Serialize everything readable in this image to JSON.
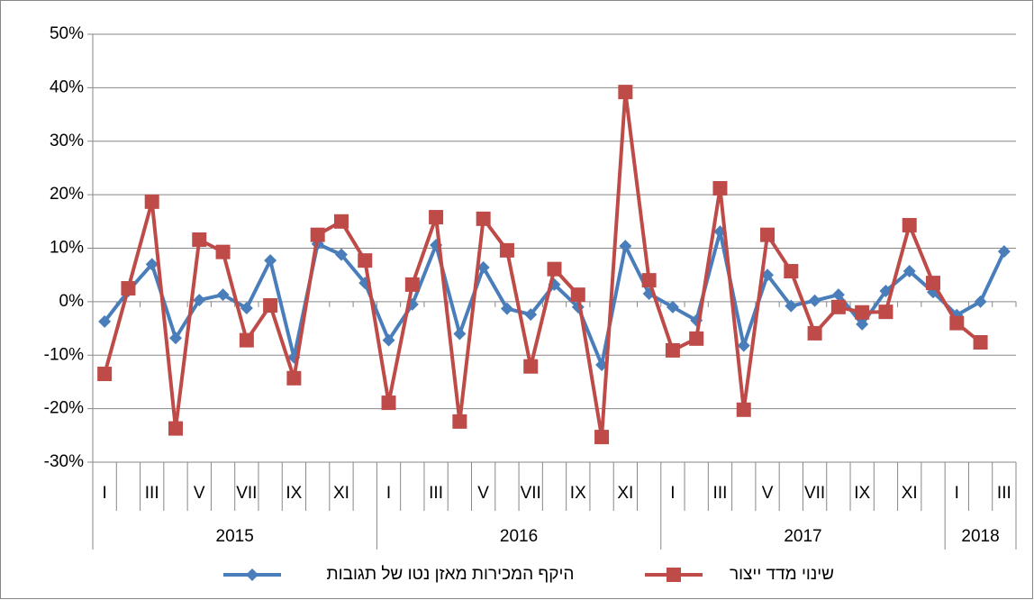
{
  "chart_data": {
    "type": "line",
    "categories": [
      "I",
      null,
      "III",
      null,
      "V",
      null,
      "VII",
      null,
      "IX",
      null,
      "XI",
      null,
      "I",
      null,
      "III",
      null,
      "V",
      null,
      "VII",
      null,
      "IX",
      null,
      "XI",
      null,
      "I",
      null,
      "III",
      null,
      "V",
      null,
      "VII",
      null,
      "IX",
      null,
      "XI",
      null,
      "I",
      null,
      "III"
    ],
    "years": [
      "2015",
      "2016",
      "2017",
      "2018"
    ],
    "series": [
      {
        "name": "היקף המכירות מאזן נטו של תגובות",
        "color": "#4a7ebb",
        "marker": "diamond",
        "values": [
          -3.7,
          2,
          7,
          -6.8,
          0.3,
          1.3,
          -1.2,
          7.7,
          -10.4,
          10.8,
          8.8,
          3.5,
          -7.2,
          -0.5,
          10.6,
          -6,
          6.4,
          -1.3,
          -2.4,
          3.2,
          -1,
          -11.8,
          10.4,
          1.5,
          -1,
          -3.5,
          13.1,
          -8.2,
          5,
          -0.8,
          0.2,
          1.3,
          -4.2,
          2,
          5.7,
          1.8,
          -2.5,
          0,
          9.4
        ]
      },
      {
        "name": "שינוי מדד ייצור",
        "color": "#be4b48",
        "marker": "square",
        "values": [
          -13.5,
          2.5,
          18.7,
          -23.7,
          11.6,
          9.3,
          -7.2,
          -0.7,
          -14.3,
          12.5,
          15,
          7.7,
          -18.9,
          3.2,
          15.8,
          -22.4,
          15.5,
          9.6,
          -12.1,
          6.1,
          1.3,
          -25.3,
          39.2,
          4,
          -9.1,
          -6.9,
          21.2,
          -20.2,
          12.5,
          5.7,
          -5.9,
          -1,
          -2,
          -1.9,
          14.3,
          3.5,
          -4,
          -7.6,
          null
        ]
      }
    ],
    "ylim": [
      -30,
      50
    ],
    "yticks": [
      {
        "value": -30,
        "label": "-30%"
      },
      {
        "value": -20,
        "label": "-20%"
      },
      {
        "value": -10,
        "label": "-10%"
      },
      {
        "value": 0,
        "label": "0%"
      },
      {
        "value": 10,
        "label": "10%"
      },
      {
        "value": 20,
        "label": "20%"
      },
      {
        "value": 30,
        "label": "30%"
      },
      {
        "value": 40,
        "label": "40%"
      },
      {
        "value": 50,
        "label": "50%"
      }
    ],
    "grid": true,
    "legend": "bottom"
  }
}
